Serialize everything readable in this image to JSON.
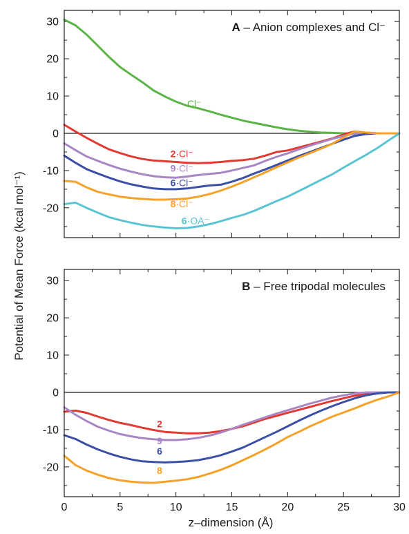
{
  "chart_data": [
    {
      "type": "line",
      "panel_letter": "A",
      "title": "– Anion complexes and Cl⁻",
      "xlabel": "z–dimension (Å)",
      "ylabel": "Potential of Mean Force (kcal mol⁻¹)",
      "xlim": [
        0,
        30
      ],
      "ylim": [
        -28,
        33
      ],
      "xticks": [
        0,
        5,
        10,
        15,
        20,
        25,
        30
      ],
      "yticks": [
        -20,
        -10,
        0,
        10,
        20,
        30
      ],
      "show_x_tick_labels": false,
      "zero_line": true,
      "series": [
        {
          "name": "Cl⁻",
          "label_bold": "",
          "label_rest": "Cl⁻",
          "color": "#5ab446",
          "label_pos": [
            11,
            7.0
          ],
          "x": [
            0,
            1,
            2,
            3,
            4,
            5,
            6,
            7,
            8,
            9,
            10,
            11,
            12,
            13,
            14,
            15,
            16,
            17,
            18,
            19,
            20,
            21,
            22,
            23,
            24,
            25,
            26,
            27,
            28,
            29,
            30
          ],
          "y": [
            30.5,
            29,
            26.5,
            23.5,
            20.5,
            17.8,
            15.7,
            13.7,
            11.5,
            9.9,
            8.5,
            7.4,
            6.7,
            5.9,
            5.0,
            4.2,
            3.4,
            2.8,
            2.2,
            1.6,
            1.1,
            0.7,
            0.4,
            0.2,
            0.1,
            0,
            0,
            0,
            0,
            0,
            0
          ]
        },
        {
          "name": "2·Cl⁻",
          "label_bold": "2",
          "label_rest": "·Cl⁻",
          "color": "#e23a32",
          "label_pos": [
            9.5,
            -6.4
          ],
          "x": [
            0,
            1,
            2,
            3,
            4,
            5,
            6,
            7,
            8,
            9,
            10,
            11,
            12,
            13,
            14,
            15,
            16,
            17,
            18,
            19,
            20,
            21,
            22,
            23,
            24,
            25,
            26,
            27,
            28,
            29,
            30
          ],
          "y": [
            2.3,
            0.5,
            -1.2,
            -2.8,
            -4.3,
            -5.3,
            -6.2,
            -6.9,
            -7.3,
            -7.5,
            -7.7,
            -7.9,
            -8.0,
            -7.9,
            -7.7,
            -7.4,
            -7.2,
            -6.8,
            -6.0,
            -5.0,
            -4.6,
            -3.8,
            -3.0,
            -2.2,
            -1.4,
            -0.3,
            0.5,
            0.2,
            0,
            0,
            0
          ]
        },
        {
          "name": "9·Cl⁻",
          "label_bold": "9",
          "label_rest": "·Cl⁻",
          "color": "#a885c3",
          "label_pos": [
            9.5,
            -10.3
          ],
          "x": [
            0,
            1,
            2,
            3,
            4,
            5,
            6,
            7,
            8,
            9,
            10,
            11,
            12,
            13,
            14,
            15,
            16,
            17,
            18,
            19,
            20,
            21,
            22,
            23,
            24,
            25,
            26,
            27,
            28,
            29,
            30
          ],
          "y": [
            -2.7,
            -4.5,
            -6.2,
            -7.4,
            -8.5,
            -9.5,
            -10.3,
            -11.0,
            -11.5,
            -11.8,
            -11.9,
            -11.6,
            -11.2,
            -10.9,
            -10.6,
            -10.0,
            -9.3,
            -8.6,
            -7.4,
            -6.3,
            -5.4,
            -4.3,
            -3.3,
            -2.4,
            -1.5,
            -0.7,
            -0.1,
            0.1,
            0,
            0,
            0
          ]
        },
        {
          "name": "6·Cl⁻",
          "label_bold": "6",
          "label_rest": "·Cl⁻",
          "color": "#3a4fa5",
          "label_pos": [
            9.5,
            -14.2
          ],
          "x": [
            0,
            1,
            2,
            3,
            4,
            5,
            6,
            7,
            8,
            9,
            10,
            11,
            12,
            13,
            14,
            15,
            16,
            17,
            18,
            19,
            20,
            21,
            22,
            23,
            24,
            25,
            26,
            27,
            28,
            29,
            30
          ],
          "y": [
            -6.0,
            -7.9,
            -9.6,
            -10.8,
            -11.9,
            -12.9,
            -13.7,
            -14.3,
            -14.8,
            -15.0,
            -15.0,
            -14.8,
            -14.4,
            -14.0,
            -13.8,
            -13.0,
            -12.0,
            -10.8,
            -9.7,
            -8.5,
            -7.3,
            -6.1,
            -5.0,
            -3.9,
            -2.8,
            -1.7,
            -0.7,
            -0.2,
            0,
            0,
            0
          ]
        },
        {
          "name": "8·Cl⁻",
          "label_bold": "8",
          "label_rest": "·Cl⁻",
          "color": "#f5a128",
          "label_pos": [
            9.5,
            -19.8
          ],
          "x": [
            0,
            1,
            2,
            3,
            4,
            5,
            6,
            7,
            8,
            9,
            10,
            11,
            12,
            13,
            14,
            15,
            16,
            17,
            18,
            19,
            20,
            21,
            22,
            23,
            24,
            25,
            26,
            27,
            28,
            29,
            30
          ],
          "y": [
            -12.8,
            -13.0,
            -14.5,
            -15.7,
            -16.4,
            -17.0,
            -17.4,
            -17.6,
            -17.8,
            -17.8,
            -17.7,
            -17.5,
            -17.0,
            -16.3,
            -15.4,
            -14.3,
            -13.1,
            -11.8,
            -10.5,
            -9.1,
            -7.8,
            -6.5,
            -5.3,
            -4.1,
            -2.8,
            -1.1,
            0.5,
            0.2,
            0,
            0,
            0
          ]
        },
        {
          "name": "6·OA⁻",
          "label_bold": "6",
          "label_rest": "·OA⁻",
          "color": "#5ac4d3",
          "label_pos": [
            10.5,
            -24.4
          ],
          "x": [
            0,
            1,
            2,
            3,
            4,
            5,
            6,
            7,
            8,
            9,
            10,
            11,
            12,
            13,
            14,
            15,
            16,
            17,
            18,
            19,
            20,
            21,
            22,
            23,
            24,
            25,
            26,
            27,
            28,
            29,
            30
          ],
          "y": [
            -19.0,
            -18.6,
            -20.0,
            -21.3,
            -22.5,
            -23.3,
            -24.0,
            -24.6,
            -25.0,
            -25.3,
            -25.5,
            -25.4,
            -25.0,
            -24.4,
            -23.6,
            -22.7,
            -21.9,
            -20.8,
            -19.5,
            -18.2,
            -17.0,
            -15.5,
            -14.0,
            -12.5,
            -11.0,
            -9.2,
            -7.5,
            -5.8,
            -4.0,
            -2.0,
            0
          ]
        }
      ]
    },
    {
      "type": "line",
      "panel_letter": "B",
      "title": "– Free tripodal molecules",
      "xlabel": "z–dimension (Å)",
      "ylabel": "Potential of Mean Force (kcal mol⁻¹)",
      "xlim": [
        0,
        30
      ],
      "ylim": [
        -28,
        33
      ],
      "xticks": [
        0,
        5,
        10,
        15,
        20,
        25,
        30
      ],
      "yticks": [
        -20,
        -10,
        0,
        10,
        20,
        30
      ],
      "show_x_tick_labels": true,
      "zero_line": true,
      "series": [
        {
          "name": "2",
          "label_bold": "2",
          "label_rest": "",
          "color": "#e23a32",
          "label_pos": [
            8.3,
            -9.4
          ],
          "x": [
            0,
            1,
            2,
            3,
            4,
            5,
            6,
            7,
            8,
            9,
            10,
            11,
            12,
            13,
            14,
            15,
            16,
            17,
            18,
            19,
            20,
            21,
            22,
            23,
            24,
            25,
            26,
            27,
            28,
            29,
            30
          ],
          "y": [
            -5.2,
            -4.9,
            -5.5,
            -6.5,
            -7.4,
            -8.2,
            -8.8,
            -9.5,
            -10.1,
            -10.6,
            -10.8,
            -11.0,
            -11.0,
            -10.8,
            -10.4,
            -9.8,
            -9.1,
            -8.1,
            -7.1,
            -6.3,
            -5.5,
            -4.7,
            -3.9,
            -3.1,
            -2.3,
            -1.6,
            -0.9,
            -0.5,
            -0.2,
            0,
            0
          ]
        },
        {
          "name": "9",
          "label_bold": "9",
          "label_rest": "",
          "color": "#a885c3",
          "label_pos": [
            8.3,
            -13.9
          ],
          "x": [
            0,
            1,
            2,
            3,
            4,
            5,
            6,
            7,
            8,
            9,
            10,
            11,
            12,
            13,
            14,
            15,
            16,
            17,
            18,
            19,
            20,
            21,
            22,
            23,
            24,
            25,
            26,
            27,
            28,
            29,
            30
          ],
          "y": [
            -4.0,
            -6.0,
            -7.7,
            -9.2,
            -10.3,
            -11.2,
            -11.8,
            -12.3,
            -12.6,
            -12.8,
            -12.8,
            -12.6,
            -12.2,
            -11.6,
            -10.8,
            -9.8,
            -8.7,
            -7.7,
            -6.7,
            -5.7,
            -4.8,
            -3.9,
            -3.0,
            -2.2,
            -1.4,
            -0.8,
            -0.3,
            0,
            0,
            0,
            0
          ]
        },
        {
          "name": "6",
          "label_bold": "6",
          "label_rest": "",
          "color": "#3a4fa5",
          "label_pos": [
            8.3,
            -16.7
          ],
          "x": [
            0,
            1,
            2,
            3,
            4,
            5,
            6,
            7,
            8,
            9,
            10,
            11,
            12,
            13,
            14,
            15,
            16,
            17,
            18,
            19,
            20,
            21,
            22,
            23,
            24,
            25,
            26,
            27,
            28,
            29,
            30
          ],
          "y": [
            -11.5,
            -12.5,
            -14.0,
            -15.3,
            -16.4,
            -17.3,
            -18.0,
            -18.5,
            -18.7,
            -18.8,
            -18.7,
            -18.5,
            -18.2,
            -17.6,
            -16.9,
            -15.9,
            -14.8,
            -13.4,
            -12.0,
            -10.6,
            -9.1,
            -7.6,
            -6.2,
            -4.9,
            -3.7,
            -2.6,
            -1.6,
            -0.8,
            -0.3,
            0,
            0
          ]
        },
        {
          "name": "8",
          "label_bold": "8",
          "label_rest": "",
          "color": "#f5a128",
          "label_pos": [
            8.3,
            -21.9
          ],
          "x": [
            0,
            1,
            2,
            3,
            4,
            5,
            6,
            7,
            8,
            9,
            10,
            11,
            12,
            13,
            14,
            15,
            16,
            17,
            18,
            19,
            20,
            21,
            22,
            23,
            24,
            25,
            26,
            27,
            28,
            29,
            30
          ],
          "y": [
            -17.0,
            -19.5,
            -21.0,
            -22.1,
            -23.0,
            -23.6,
            -24.0,
            -24.2,
            -24.3,
            -24.0,
            -23.7,
            -23.3,
            -22.7,
            -21.8,
            -20.8,
            -19.6,
            -18.2,
            -16.8,
            -15.3,
            -13.7,
            -12.0,
            -10.6,
            -9.1,
            -7.8,
            -6.5,
            -5.4,
            -4.3,
            -3.1,
            -2.0,
            -1.1,
            0
          ]
        }
      ]
    }
  ]
}
